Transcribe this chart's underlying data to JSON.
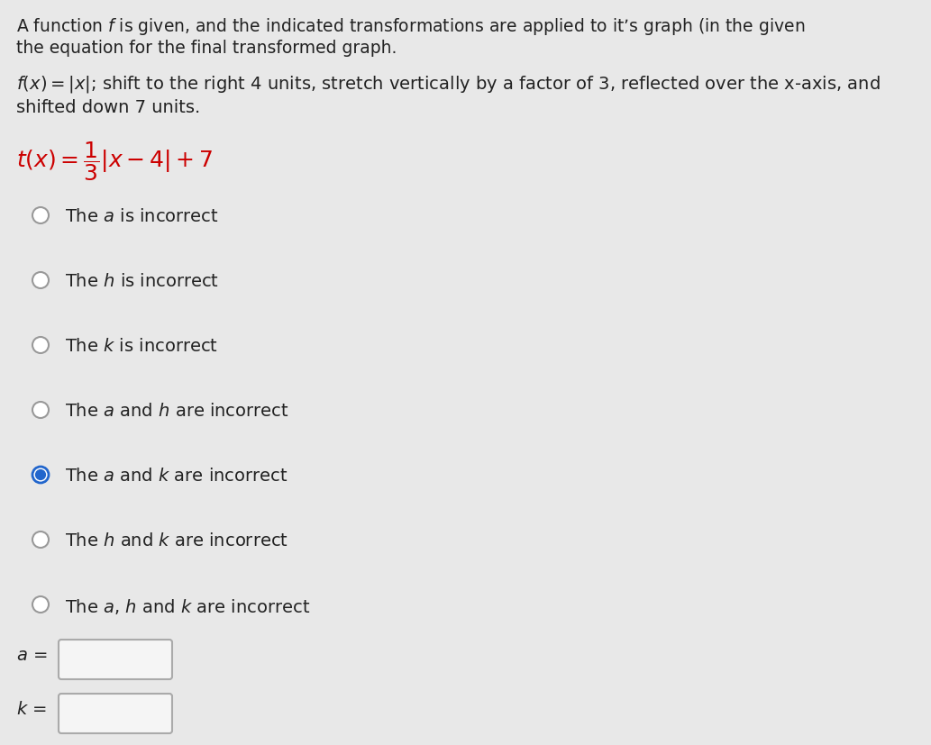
{
  "background_color": "#e8e8e8",
  "header_line1": "A function $f$ is given, and the indicated transformations are applied to it’s graph (in the given",
  "header_line2": "the equation for the final transformed graph.",
  "problem_line1": "$f(x) = |x|$; shift to the right 4 units, stretch vertically by a factor of 3, reflected over the x-axis, and",
  "problem_line2": "shifted down 7 units.",
  "equation_color": "#cc0000",
  "options": [
    "The $a$ is incorrect",
    "The $h$ is incorrect",
    "The $k$ is incorrect",
    "The $a$ and $h$ are incorrect",
    "The $a$ and $k$ are incorrect",
    "The $h$ and $k$ are incorrect",
    "The $a$, $h$ and $k$ are incorrect"
  ],
  "selected_option_index": 4,
  "text_color": "#222222",
  "radio_unsel_face": "#f0f0f0",
  "radio_unsel_edge": "#999999",
  "radio_sel_face": "#2266cc",
  "radio_sel_edge": "#2266cc",
  "input_box_face": "#f5f5f5",
  "input_box_edge": "#aaaaaa"
}
